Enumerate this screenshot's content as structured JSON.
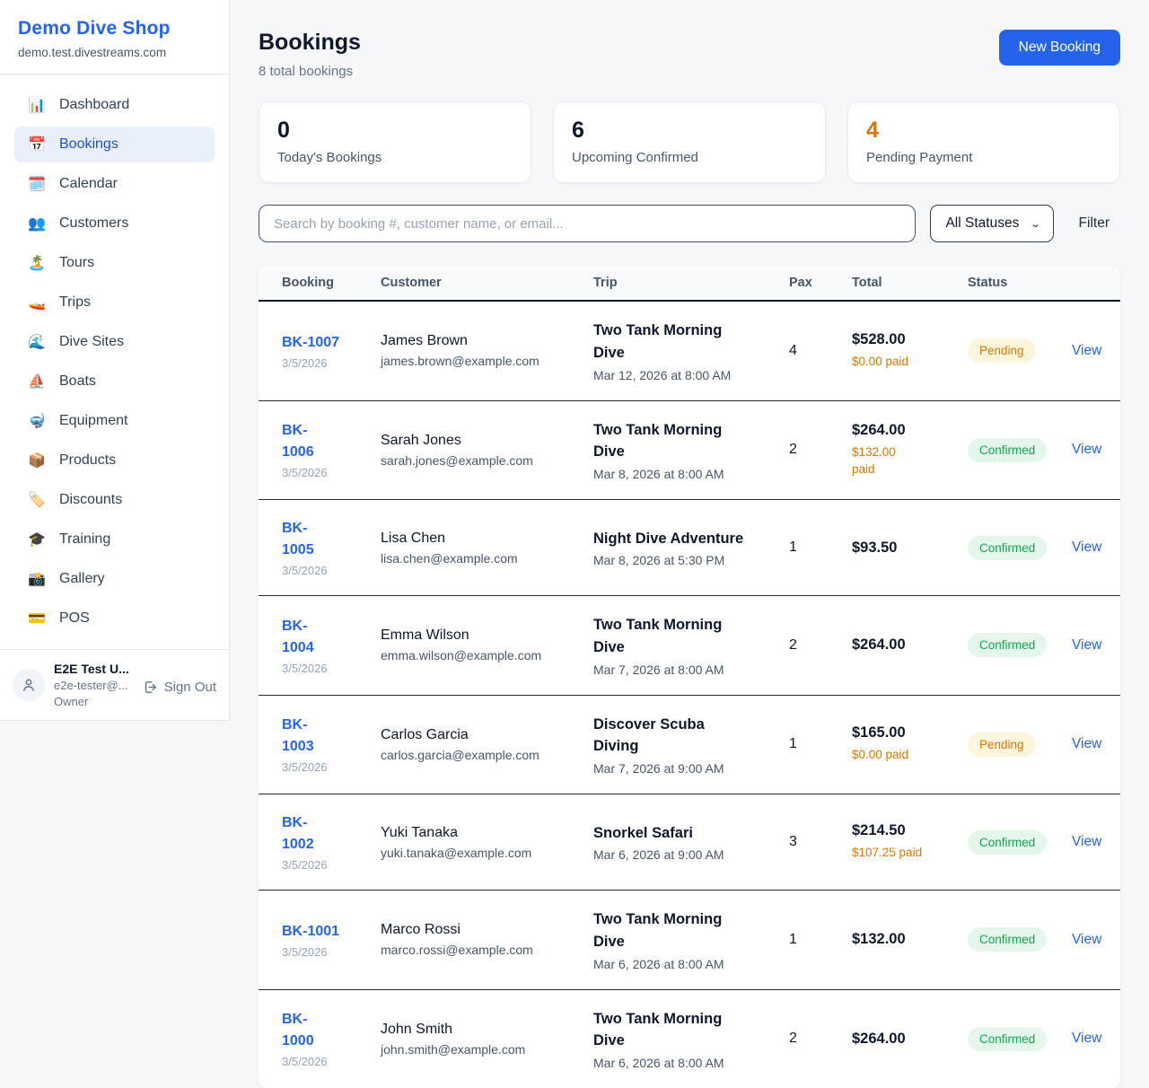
{
  "colors": {
    "accent_blue": "#2563eb",
    "active_nav_bg": "#e9f0fc",
    "pending_text": "#d97706",
    "pending_bg": "#fdf5dc",
    "confirmed_text": "#16a34a",
    "confirmed_bg": "#e5f7ec",
    "paid_orange": "#d97706",
    "page_bg": "#f5f7f9"
  },
  "sidebar": {
    "brand": {
      "name": "Demo Dive Shop",
      "domain": "demo.test.divestreams.com"
    },
    "nav": [
      {
        "label": "Dashboard",
        "icon": "📊",
        "icon_name": "bar-chart-icon",
        "active": false
      },
      {
        "label": "Bookings",
        "icon": "📅",
        "icon_name": "calendar-page-icon",
        "active": true
      },
      {
        "label": "Calendar",
        "icon": "🗓️",
        "icon_name": "spiral-calendar-icon",
        "active": false
      },
      {
        "label": "Customers",
        "icon": "👥",
        "icon_name": "people-icon",
        "active": false
      },
      {
        "label": "Tours",
        "icon": "🏝️",
        "icon_name": "island-icon",
        "active": false
      },
      {
        "label": "Trips",
        "icon": "🚤",
        "icon_name": "speedboat-icon",
        "active": false
      },
      {
        "label": "Dive Sites",
        "icon": "🌊",
        "icon_name": "wave-icon",
        "active": false
      },
      {
        "label": "Boats",
        "icon": "⛵",
        "icon_name": "sailboat-icon",
        "active": false
      },
      {
        "label": "Equipment",
        "icon": "🤿",
        "icon_name": "diving-mask-icon",
        "active": false
      },
      {
        "label": "Products",
        "icon": "📦",
        "icon_name": "package-icon",
        "active": false
      },
      {
        "label": "Discounts",
        "icon": "🏷️",
        "icon_name": "tag-icon",
        "active": false
      },
      {
        "label": "Training",
        "icon": "🎓",
        "icon_name": "graduation-cap-icon",
        "active": false
      },
      {
        "label": "Gallery",
        "icon": "📸",
        "icon_name": "camera-icon",
        "active": false
      },
      {
        "label": "POS",
        "icon": "💳",
        "icon_name": "credit-card-icon",
        "active": false
      }
    ],
    "user": {
      "name": "E2E Test U...",
      "email": "e2e-tester@...",
      "role": "Owner",
      "sign_out_label": "Sign Out"
    }
  },
  "header": {
    "title": "Bookings",
    "subtitle": "8 total bookings",
    "new_booking_label": "New Booking"
  },
  "stats": [
    {
      "value": "0",
      "label": "Today's Bookings",
      "accent": false
    },
    {
      "value": "6",
      "label": "Upcoming Confirmed",
      "accent": false
    },
    {
      "value": "4",
      "label": "Pending Payment",
      "accent": true
    }
  ],
  "controls": {
    "search_placeholder": "Search by booking #, customer name, or email...",
    "status_filter_value": "All Statuses",
    "filter_label": "Filter"
  },
  "table": {
    "columns": [
      "Booking",
      "Customer",
      "Trip",
      "Pax",
      "Total",
      "Status"
    ],
    "view_label": "View",
    "rows": [
      {
        "number_lines": [
          "BK-1007"
        ],
        "date": "3/5/2026",
        "customer": "James Brown",
        "email": "james.brown@example.com",
        "trip_lines": [
          "Two Tank Morning",
          "Dive"
        ],
        "trip_date": "Mar 12, 2026 at 8:00 AM",
        "pax": "4",
        "total": "$528.00",
        "paid_lines": [
          "$0.00 paid"
        ],
        "status": "Pending"
      },
      {
        "number_lines": [
          "BK-",
          "1006"
        ],
        "date": "3/5/2026",
        "customer": "Sarah Jones",
        "email": "sarah.jones@example.com",
        "trip_lines": [
          "Two Tank Morning",
          "Dive"
        ],
        "trip_date": "Mar 8, 2026 at 8:00 AM",
        "pax": "2",
        "total": "$264.00",
        "paid_lines": [
          "$132.00",
          "paid"
        ],
        "status": "Confirmed"
      },
      {
        "number_lines": [
          "BK-",
          "1005"
        ],
        "date": "3/5/2026",
        "customer": "Lisa Chen",
        "email": "lisa.chen@example.com",
        "trip_lines": [
          "Night Dive Adventure"
        ],
        "trip_date": "Mar 8, 2026 at 5:30 PM",
        "pax": "1",
        "total": "$93.50",
        "paid_lines": null,
        "status": "Confirmed"
      },
      {
        "number_lines": [
          "BK-",
          "1004"
        ],
        "date": "3/5/2026",
        "customer": "Emma Wilson",
        "email": "emma.wilson@example.com",
        "trip_lines": [
          "Two Tank Morning",
          "Dive"
        ],
        "trip_date": "Mar 7, 2026 at 8:00 AM",
        "pax": "2",
        "total": "$264.00",
        "paid_lines": null,
        "status": "Confirmed"
      },
      {
        "number_lines": [
          "BK-",
          "1003"
        ],
        "date": "3/5/2026",
        "customer": "Carlos Garcia",
        "email": "carlos.garcia@example.com",
        "trip_lines": [
          "Discover Scuba",
          "Diving"
        ],
        "trip_date": "Mar 7, 2026 at 9:00 AM",
        "pax": "1",
        "total": "$165.00",
        "paid_lines": [
          "$0.00 paid"
        ],
        "status": "Pending"
      },
      {
        "number_lines": [
          "BK-",
          "1002"
        ],
        "date": "3/5/2026",
        "customer": "Yuki Tanaka",
        "email": "yuki.tanaka@example.com",
        "trip_lines": [
          "Snorkel Safari"
        ],
        "trip_date": "Mar 6, 2026 at 9:00 AM",
        "pax": "3",
        "total": "$214.50",
        "paid_lines": [
          "$107.25 paid"
        ],
        "status": "Confirmed"
      },
      {
        "number_lines": [
          "BK-1001"
        ],
        "date": "3/5/2026",
        "customer": "Marco Rossi",
        "email": "marco.rossi@example.com",
        "trip_lines": [
          "Two Tank Morning",
          "Dive"
        ],
        "trip_date": "Mar 6, 2026 at 8:00 AM",
        "pax": "1",
        "total": "$132.00",
        "paid_lines": null,
        "status": "Confirmed"
      },
      {
        "number_lines": [
          "BK-",
          "1000"
        ],
        "date": "3/5/2026",
        "customer": "John Smith",
        "email": "john.smith@example.com",
        "trip_lines": [
          "Two Tank Morning",
          "Dive"
        ],
        "trip_date": "Mar 6, 2026 at 8:00 AM",
        "pax": "2",
        "total": "$264.00",
        "paid_lines": null,
        "status": "Confirmed"
      }
    ]
  }
}
